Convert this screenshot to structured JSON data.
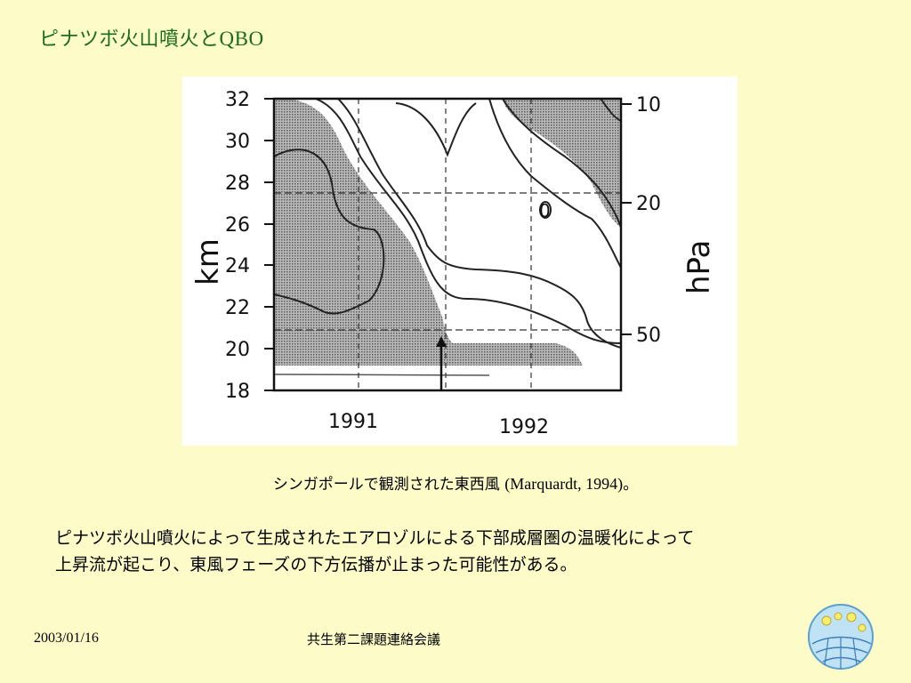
{
  "slide": {
    "title_jp": "ピナツボ火山噴火と",
    "title_latin": "QBO",
    "caption_jp": "シンガポールで観測された東西風",
    "caption_ref": "(Marquardt, 1994)",
    "caption_end": "。",
    "body_lines": [
      "ピナツボ火山噴火によって生成されたエアロゾルによる下部成層圏の温暖化によって",
      "上昇流が起こり、東風フェーズの下方伝播が止まった可能性がある。"
    ],
    "footer_date": "2003/01/16",
    "footer_meeting": "共生第二課題連絡会議",
    "logo_icon": "globe-logo-icon"
  },
  "colors": {
    "background": "#fdfcc8",
    "title": "#1c6a1c",
    "shading": "#9a9a9a"
  },
  "chart_data": {
    "type": "contour",
    "xlabel": "",
    "ylabel_left": "km",
    "ylabel_right": "hPa",
    "x_ticks": [
      "1991",
      "1992"
    ],
    "y_left_ticks": [
      32,
      30,
      28,
      26,
      24,
      22,
      20,
      18
    ],
    "y_left_range": [
      18,
      32
    ],
    "y_right_ticks": [
      10,
      20,
      50
    ],
    "contour_label": "0",
    "eruption_marker": "arrow at eruption time, 1991"
  }
}
